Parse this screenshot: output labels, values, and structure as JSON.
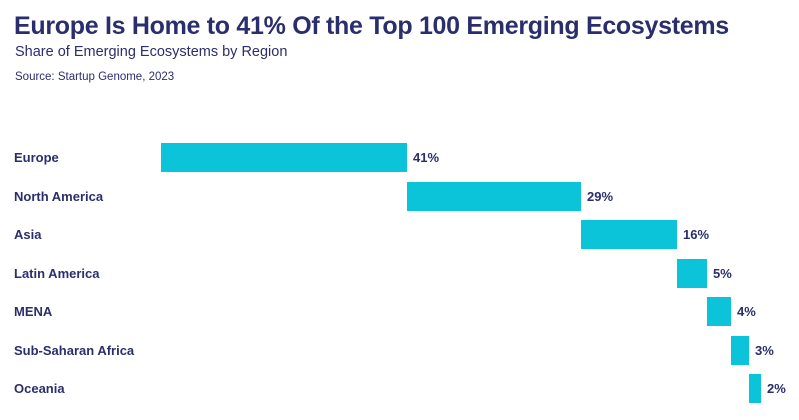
{
  "header": {
    "title": "Europe Is Home to 41% Of the Top 100 Emerging Ecosystems",
    "subtitle": "Share of Emerging Ecosystems by Region",
    "source": "Source: Startup Genome, 2023"
  },
  "colors": {
    "background": "#ffffff",
    "text": "#2b2e6d",
    "bar": "#0bc4da"
  },
  "chart_data": {
    "type": "bar",
    "variant": "horizontal-waterfall",
    "title": "Europe Is Home to 41% Of the Top 100 Emerging Ecosystems",
    "subtitle": "Share of Emerging Ecosystems by Region",
    "source": "Source: Startup Genome, 2023",
    "categories": [
      "Europe",
      "North America",
      "Asia",
      "Latin America",
      "MENA",
      "Sub-Saharan Africa",
      "Oceania"
    ],
    "values": [
      41,
      29,
      16,
      5,
      4,
      3,
      2
    ],
    "value_labels": [
      "41%",
      "29%",
      "16%",
      "5%",
      "4%",
      "3%",
      "2%"
    ],
    "cumulative_starts": [
      0,
      41,
      70,
      86,
      91,
      95,
      98
    ],
    "total": 100,
    "xlabel": "",
    "ylabel": "",
    "xlim": [
      0,
      100
    ],
    "grid": false,
    "legend": false,
    "bar_color": "#0bc4da",
    "label_color": "#2b2e6d"
  }
}
